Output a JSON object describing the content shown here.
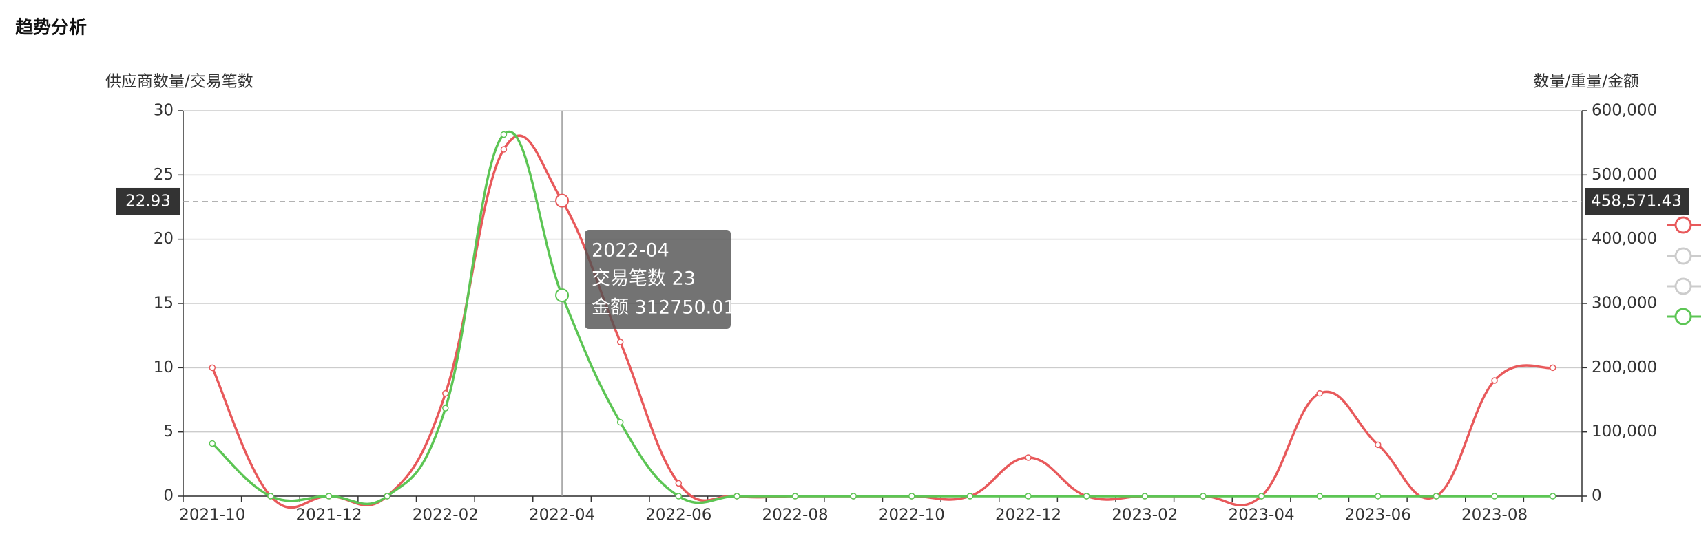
{
  "header": {
    "title": "趋势分析"
  },
  "chart_data": {
    "type": "line",
    "y_label": "供应商数量/交易笔数",
    "y2_label": "数量/重量/金额",
    "categories": [
      "2021-10",
      null,
      "2021-12",
      null,
      "2022-02",
      null,
      "2022-04",
      null,
      "2022-06",
      null,
      "2022-08",
      null,
      "2022-10",
      null,
      "2022-12",
      null,
      "2023-02",
      null,
      "2023-04",
      null,
      "2023-06",
      null,
      "2023-08",
      null
    ],
    "series": [
      {
        "name": "交易笔数",
        "color": "#e8595b",
        "values": [
          10,
          0,
          0,
          0,
          8,
          27,
          23,
          12,
          1,
          0,
          0,
          0,
          0,
          0,
          3,
          0,
          0,
          0,
          0,
          8,
          4,
          0,
          9,
          10
        ]
      },
      {
        "name": "金额",
        "color": "#5cc554",
        "axis": "y2",
        "values": [
          82000,
          0,
          0,
          0,
          137000,
          563000,
          312750.01,
          115000,
          0,
          0,
          0,
          0,
          0,
          0,
          0,
          0,
          0,
          0,
          0,
          0,
          0,
          0,
          0,
          0
        ]
      }
    ],
    "ylim": [
      0,
      30
    ],
    "yticks": [
      0,
      5,
      10,
      15,
      20,
      25,
      30
    ],
    "y2lim": [
      0,
      600000
    ],
    "y2ticks": [
      0,
      {
        "value": 100000,
        "label": "100,000"
      },
      {
        "value": 200000,
        "label": "200,000"
      },
      {
        "value": 300000,
        "label": "300,000"
      },
      {
        "value": 400000,
        "label": "400,000"
      },
      {
        "value": 500000,
        "label": "500,000"
      },
      {
        "value": 600000,
        "label": "600,000"
      }
    ],
    "grid": true,
    "crosshair": {
      "y": 22.93,
      "y_label": "22.93",
      "y2": 458571.43,
      "y2_label": "458,571.43"
    },
    "tooltip": {
      "title": "2022-04",
      "lines": [
        "交易笔数 23",
        "金额 312750.01"
      ]
    }
  }
}
